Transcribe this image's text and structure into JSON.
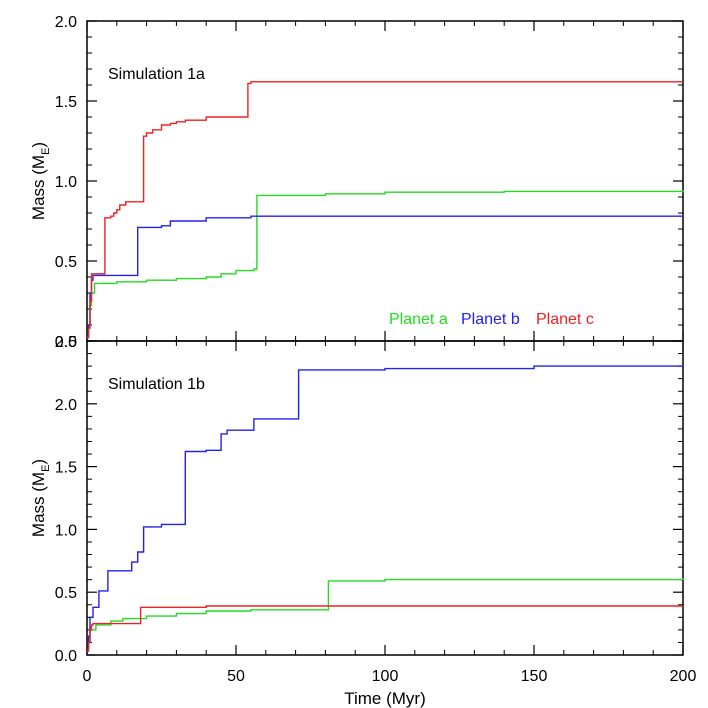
{
  "chart_data": {
    "type": "line",
    "step": true,
    "xlabel": "Time (Myr)",
    "xlim": [
      0,
      200
    ],
    "xticks": [
      0,
      50,
      100,
      150,
      200
    ],
    "xtick_labels": [
      "0",
      "50",
      "100",
      "150",
      "200"
    ],
    "legend": [
      {
        "label": "Planet a",
        "color": "#22dd22"
      },
      {
        "label": "Planet b",
        "color": "#2222ee"
      },
      {
        "label": "Planet c",
        "color": "#ee2222"
      }
    ],
    "panels": [
      {
        "title": "Simulation 1a",
        "ylabel": "Mass (M",
        "ylabel_sub": "E",
        "ylabel_close": ")",
        "ylim": [
          0,
          2.0
        ],
        "yticks": [
          0,
          0.5,
          1.0,
          1.5,
          2.0
        ],
        "ytick_labels": [
          "0.0",
          "0.5",
          "1.0",
          "1.5",
          "2.0"
        ],
        "series": [
          {
            "name": "Planet a",
            "color": "#22dd22",
            "x": [
              0,
              0.5,
              1,
              1.5,
              2.5,
              10,
              20,
              30,
              40,
              45,
              50,
              56,
              57,
              80,
              100,
              140,
              200
            ],
            "y": [
              0.03,
              0.1,
              0.22,
              0.3,
              0.36,
              0.37,
              0.38,
              0.39,
              0.4,
              0.42,
              0.44,
              0.45,
              0.91,
              0.92,
              0.93,
              0.935,
              0.94
            ]
          },
          {
            "name": "Planet b",
            "color": "#2222ee",
            "x": [
              0,
              0.5,
              1,
              1.5,
              2,
              16,
              17,
              25,
              28,
              40,
              55,
              200
            ],
            "y": [
              0.03,
              0.1,
              0.3,
              0.38,
              0.41,
              0.41,
              0.71,
              0.72,
              0.75,
              0.77,
              0.78,
              0.79
            ]
          },
          {
            "name": "Planet c",
            "color": "#ee2222",
            "x": [
              0,
              0.5,
              1,
              1.5,
              5,
              6,
              8,
              9,
              10,
              11,
              13,
              18,
              19,
              20,
              22,
              25,
              28,
              30,
              33,
              40,
              53,
              54,
              55,
              100,
              200
            ],
            "y": [
              0.02,
              0.08,
              0.25,
              0.42,
              0.42,
              0.77,
              0.78,
              0.8,
              0.82,
              0.85,
              0.87,
              0.87,
              1.28,
              1.3,
              1.32,
              1.35,
              1.36,
              1.37,
              1.38,
              1.4,
              1.4,
              1.61,
              1.62,
              1.62,
              1.62
            ]
          }
        ],
        "legend_location": "bottom-right"
      },
      {
        "title": "Simulation 1b",
        "ylabel": "Mass (M",
        "ylabel_sub": "E",
        "ylabel_close": ")",
        "ylim": [
          0,
          2.5
        ],
        "yticks": [
          0,
          0.5,
          1.0,
          1.5,
          2.0,
          2.5
        ],
        "ytick_labels": [
          "0.0",
          "0.5",
          "1.0",
          "1.5",
          "2.0",
          "2.5"
        ],
        "series": [
          {
            "name": "Planet a",
            "color": "#22dd22",
            "x": [
              0,
              0.5,
              1,
              3,
              8,
              12,
              20,
              30,
              40,
              55,
              80,
              81,
              100,
              150,
              200
            ],
            "y": [
              0.05,
              0.1,
              0.2,
              0.24,
              0.27,
              0.29,
              0.31,
              0.33,
              0.35,
              0.36,
              0.36,
              0.59,
              0.6,
              0.6,
              0.61
            ]
          },
          {
            "name": "Planet b",
            "color": "#2222ee",
            "x": [
              0,
              0.5,
              1,
              2,
              4,
              7,
              15,
              17,
              19,
              25,
              32,
              33,
              40,
              45,
              47,
              55,
              56,
              70,
              71,
              100,
              150,
              200
            ],
            "y": [
              0.05,
              0.15,
              0.3,
              0.38,
              0.51,
              0.67,
              0.74,
              0.82,
              1.02,
              1.04,
              1.04,
              1.62,
              1.63,
              1.76,
              1.79,
              1.79,
              1.88,
              1.88,
              2.27,
              2.28,
              2.3,
              2.31
            ]
          },
          {
            "name": "Planet c",
            "color": "#ee2222",
            "x": [
              0,
              0.5,
              1,
              1.5,
              2,
              17,
              18,
              40,
              80,
              200
            ],
            "y": [
              0.03,
              0.1,
              0.2,
              0.24,
              0.25,
              0.25,
              0.38,
              0.39,
              0.39,
              0.39
            ]
          }
        ]
      }
    ]
  }
}
